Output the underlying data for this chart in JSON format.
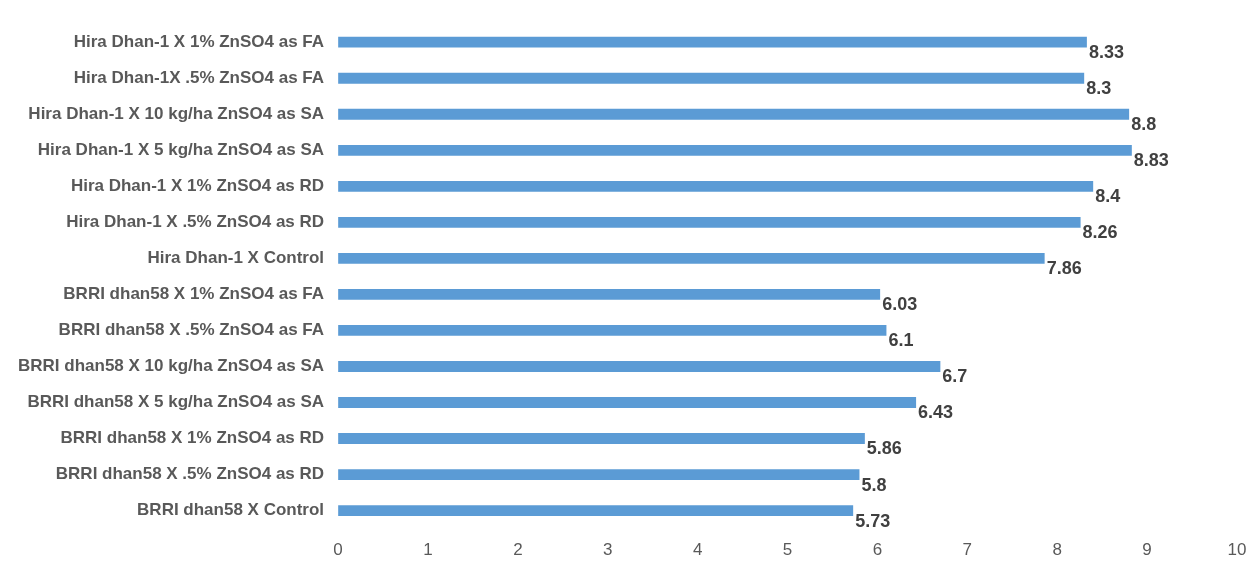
{
  "chart_data": {
    "type": "bar",
    "orientation": "horizontal",
    "categories": [
      "Hira Dhan-1 X 1% ZnSO4 as FA",
      "Hira Dhan-1X .5% ZnSO4 as FA",
      "Hira Dhan-1 X 10 kg/ha ZnSO4 as SA",
      "Hira Dhan-1 X 5 kg/ha ZnSO4 as SA",
      "Hira Dhan-1 X 1% ZnSO4 as RD",
      "Hira Dhan-1 X .5% ZnSO4 as RD",
      "Hira Dhan-1 X Control",
      "BRRI dhan58 X 1% ZnSO4 as FA",
      "BRRI dhan58 X .5% ZnSO4 as FA",
      "BRRI dhan58 X 10 kg/ha ZnSO4 as SA",
      "BRRI dhan58 X 5 kg/ha ZnSO4 as SA",
      "BRRI dhan58 X 1% ZnSO4 as RD",
      "BRRI dhan58 X .5% ZnSO4 as RD",
      "BRRI dhan58 X Control"
    ],
    "values": [
      8.33,
      8.3,
      8.8,
      8.83,
      8.4,
      8.26,
      7.86,
      6.03,
      6.1,
      6.7,
      6.43,
      5.86,
      5.8,
      5.73
    ],
    "color": "#5b9bd5",
    "data_labels": true,
    "grid": false,
    "legend": false,
    "xlim": [
      0,
      10
    ],
    "xticks": [
      0,
      1,
      2,
      3,
      4,
      5,
      6,
      7,
      8,
      9,
      10
    ]
  }
}
